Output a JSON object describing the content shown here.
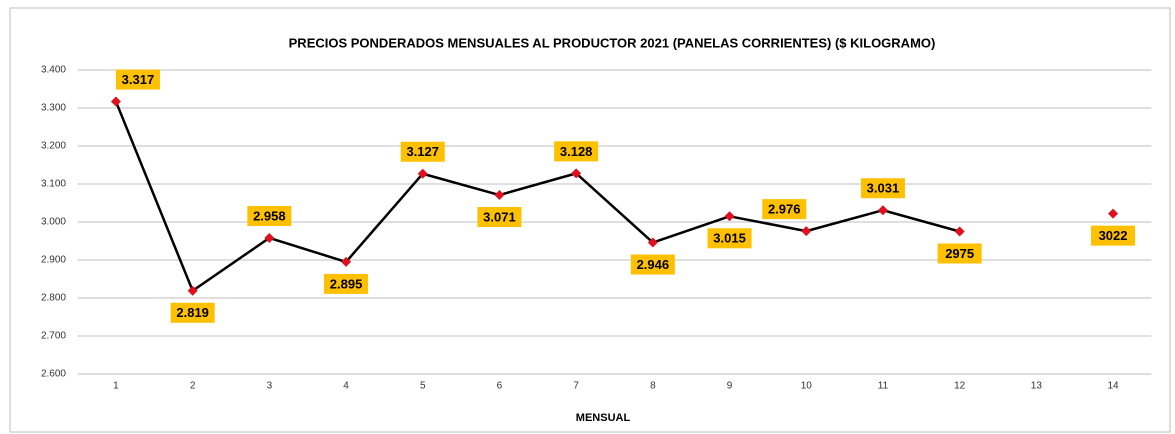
{
  "chart_data": {
    "type": "line",
    "title": "PRECIOS  PONDERADOS MENSUALES AL PRODUCTOR 2021 (PANELAS CORRIENTES) ($ KILOGRAMO)",
    "x_label": "MENSUAL",
    "categories": [
      "1",
      "2",
      "3",
      "4",
      "5",
      "6",
      "7",
      "8",
      "9",
      "10",
      "11",
      "12",
      "13",
      "14"
    ],
    "values": [
      3317,
      2819,
      2958,
      2895,
      3127,
      3071,
      3128,
      2946,
      3015,
      2976,
      3031,
      2975,
      null,
      3022
    ],
    "value_labels": [
      "3.317",
      "2.819",
      "2.958",
      "2.895",
      "3.127",
      "3.071",
      "3.128",
      "2.946",
      "3.015",
      "2.976",
      "3.031",
      "2975",
      null,
      "3022"
    ],
    "color": "#000000",
    "marker_color": "#e0101e",
    "label_box_color": "#ffc000",
    "ylim": [
      2600,
      3400
    ],
    "yticks": [
      {
        "value": 2600,
        "label": "2.600"
      },
      {
        "value": 2700,
        "label": "2.700"
      },
      {
        "value": 2800,
        "label": "2.800"
      },
      {
        "value": 2900,
        "label": "2.900"
      },
      {
        "value": 3000,
        "label": "3.000"
      },
      {
        "value": 3100,
        "label": "3.100"
      },
      {
        "value": 3200,
        "label": "3.200"
      },
      {
        "value": 3300,
        "label": "3.300"
      },
      {
        "value": 3400,
        "label": "3.400"
      }
    ],
    "grid": true
  }
}
